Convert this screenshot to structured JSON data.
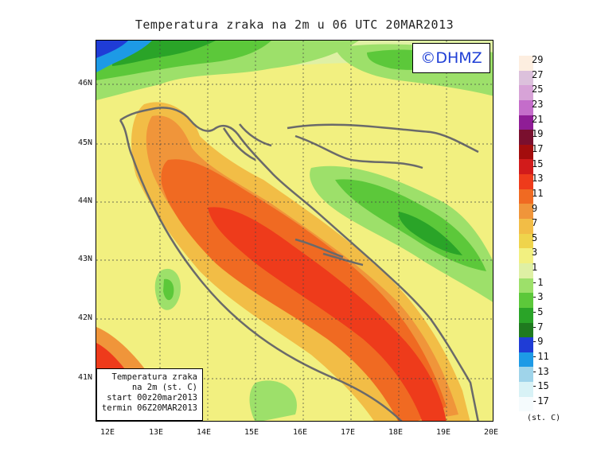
{
  "title": "Temperatura zraka na 2m u 06 UTC 20MAR2013",
  "logo": "©DHMZ",
  "info_box": {
    "line1": "Temperatura zraka",
    "line2": "na 2m (st. C)",
    "line3": "start 00z20mar2013",
    "line4": "termin 06Z20MAR2013"
  },
  "lat_labels": [
    "46N",
    "45N",
    "44N",
    "43N",
    "42N",
    "41N"
  ],
  "lon_labels": [
    "12E",
    "13E",
    "14E",
    "15E",
    "16E",
    "17E",
    "18E",
    "19E",
    "20E"
  ],
  "legend": {
    "unit": "(st. C)",
    "labels": [
      "29",
      "27",
      "25",
      "23",
      "21",
      "19",
      "17",
      "15",
      "13",
      "11",
      "9",
      "7",
      "5",
      "3",
      "1",
      "-1",
      "-3",
      "-5",
      "-7",
      "-9",
      "-11",
      "-13",
      "-15",
      "-17"
    ],
    "colors": [
      "#fdeee0",
      "#dcc1dc",
      "#d7a3d7",
      "#c46dca",
      "#8f1d96",
      "#7a0f2e",
      "#a30d0d",
      "#d21b1b",
      "#ee3b1b",
      "#f06a22",
      "#f0953a",
      "#f2bd46",
      "#efd44c",
      "#f2f080",
      "#dff0a4",
      "#9de06a",
      "#5cc83a",
      "#2aa428",
      "#1f7a1f",
      "#1f3cd6",
      "#1d9ae6",
      "#9fd4ea",
      "#d8f2f6",
      "#f5fbfd"
    ]
  }
}
